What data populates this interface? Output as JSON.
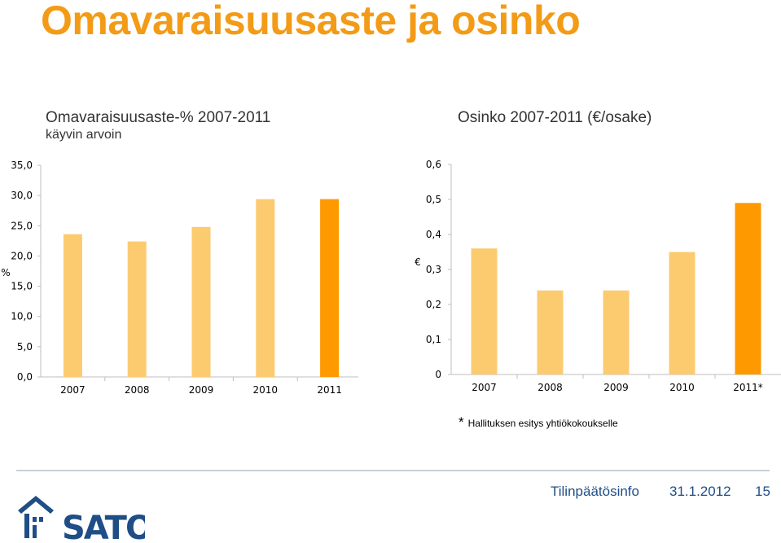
{
  "slide": {
    "title": "Omavaraisuusaste ja osinko"
  },
  "chart_data": [
    {
      "type": "bar",
      "title": "Omavaraisuusaste-% 2007-2011",
      "subtitle": "käyvin arvoin",
      "ylabel": "%",
      "xlabel": "",
      "categories": [
        "2007",
        "2008",
        "2009",
        "2010",
        "2011"
      ],
      "values": [
        23.6,
        22.4,
        24.8,
        29.4,
        29.4
      ],
      "ylim": [
        0,
        35
      ],
      "yticks": [
        "0,0",
        "5,0",
        "10,0",
        "15,0",
        "20,0",
        "25,0",
        "30,0",
        "35,0"
      ],
      "bar_colors": [
        "#fccb70",
        "#fccb70",
        "#fccb70",
        "#fccb70",
        "#ff9900"
      ],
      "grid": false
    },
    {
      "type": "bar",
      "title": "Osinko 2007-2011 (€/osake)",
      "ylabel": "€",
      "xlabel": "",
      "categories": [
        "2007",
        "2008",
        "2009",
        "2010",
        "2011*"
      ],
      "values": [
        0.36,
        0.24,
        0.24,
        0.35,
        0.49
      ],
      "ylim": [
        0,
        0.6
      ],
      "yticks": [
        "0",
        "0,1",
        "0,2",
        "0,3",
        "0,4",
        "0,5",
        "0,6"
      ],
      "bar_colors": [
        "#fccb70",
        "#fccb70",
        "#fccb70",
        "#fccb70",
        "#ff9900"
      ],
      "grid": false
    }
  ],
  "footnote": {
    "marker": "*",
    "text": "Hallituksen esitys yhtiökokoukselle"
  },
  "footer": {
    "label": "Tilinpäätösinfo",
    "date": "31.1.2012",
    "page": "15"
  },
  "logo": {
    "text": "SATO",
    "color": "#1f4e87"
  }
}
